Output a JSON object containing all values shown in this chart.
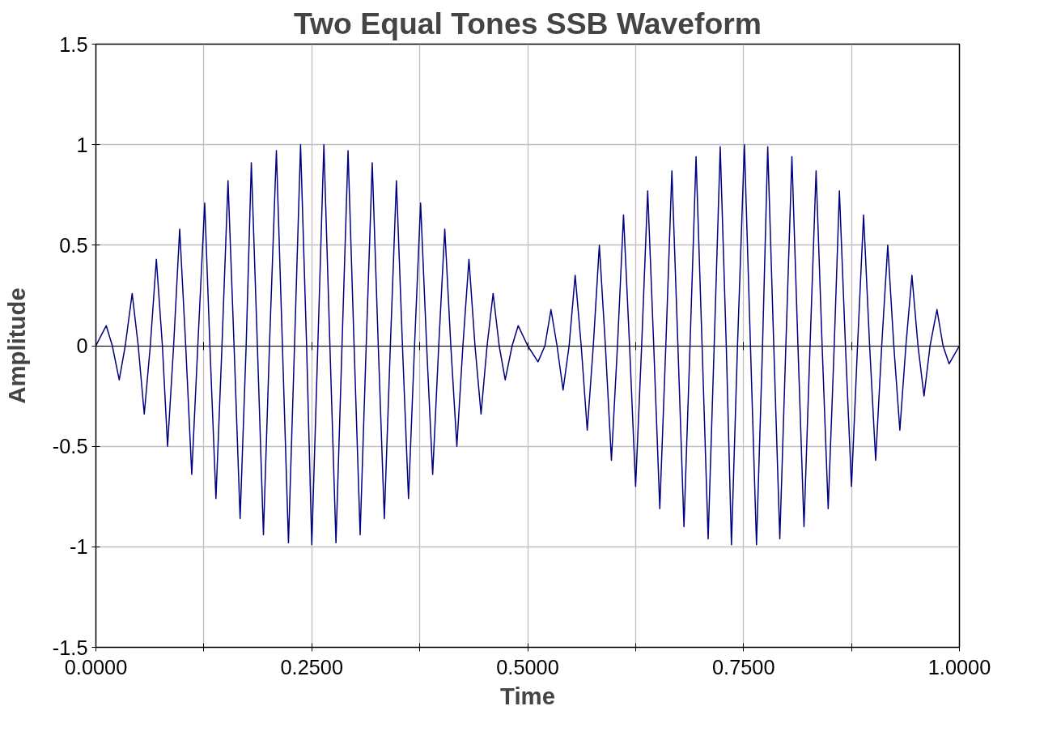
{
  "chart_data": {
    "type": "line",
    "title": "Two Equal Tones SSB Waveform",
    "xlabel": "Time",
    "ylabel": "Amplitude",
    "x": [
      0,
      0.012,
      0.019,
      0.027,
      0.034,
      0.042,
      0.049,
      0.056,
      0.063,
      0.07,
      0.077,
      0.083,
      0.09,
      0.097,
      0.104,
      0.111,
      0.118,
      0.126,
      0.132,
      0.139,
      0.146,
      0.153,
      0.16,
      0.167,
      0.174,
      0.18,
      0.187,
      0.194,
      0.201,
      0.209,
      0.216,
      0.223,
      0.23,
      0.237,
      0.244,
      0.25,
      0.257,
      0.264,
      0.271,
      0.278,
      0.285,
      0.292,
      0.299,
      0.306,
      0.313,
      0.32,
      0.327,
      0.334,
      0.341,
      0.348,
      0.355,
      0.362,
      0.369,
      0.376,
      0.383,
      0.39,
      0.397,
      0.404,
      0.411,
      0.418,
      0.425,
      0.432,
      0.439,
      0.446,
      0.453,
      0.46,
      0.467,
      0.474,
      0.482,
      0.489,
      0.5,
      0.512,
      0.52,
      0.527,
      0.534,
      0.541,
      0.548,
      0.555,
      0.562,
      0.569,
      0.576,
      0.583,
      0.59,
      0.597,
      0.604,
      0.611,
      0.618,
      0.625,
      0.632,
      0.639,
      0.646,
      0.653,
      0.66,
      0.667,
      0.674,
      0.681,
      0.688,
      0.695,
      0.702,
      0.709,
      0.716,
      0.723,
      0.73,
      0.736,
      0.743,
      0.751,
      0.758,
      0.765,
      0.772,
      0.778,
      0.785,
      0.792,
      0.799,
      0.806,
      0.813,
      0.82,
      0.827,
      0.834,
      0.841,
      0.848,
      0.855,
      0.861,
      0.868,
      0.875,
      0.882,
      0.889,
      0.896,
      0.903,
      0.91,
      0.917,
      0.924,
      0.931,
      0.938,
      0.945,
      0.952,
      0.959,
      0.966,
      0.974,
      0.981,
      0.988,
      1.0
    ],
    "series": [
      {
        "color": "#000080",
        "values": [
          0,
          0.1,
          0,
          -0.17,
          0,
          0.26,
          0,
          -0.34,
          0,
          0.43,
          0,
          -0.5,
          0,
          0.58,
          0,
          -0.64,
          0,
          0.71,
          0,
          -0.76,
          0,
          0.82,
          0,
          -0.86,
          0,
          0.91,
          0,
          -0.94,
          0,
          0.97,
          0,
          -0.98,
          0,
          1.0,
          0,
          -0.99,
          0,
          1.0,
          0,
          -0.98,
          0,
          0.97,
          0,
          -0.94,
          0,
          0.91,
          0,
          -0.86,
          0,
          0.82,
          0,
          -0.76,
          0,
          0.71,
          0,
          -0.64,
          0,
          0.58,
          0,
          -0.5,
          0,
          0.43,
          0,
          -0.34,
          0,
          0.26,
          0,
          -0.17,
          0,
          0.1,
          0,
          -0.08,
          0,
          0.18,
          0,
          -0.22,
          0,
          0.35,
          0,
          -0.42,
          0,
          0.5,
          0,
          -0.57,
          0,
          0.65,
          0,
          -0.7,
          0,
          0.77,
          0,
          -0.81,
          0,
          0.87,
          0,
          -0.9,
          0,
          0.94,
          0,
          -0.96,
          0,
          0.99,
          0,
          -0.99,
          0,
          1.0,
          0,
          -0.99,
          0,
          0.99,
          0,
          -0.96,
          0,
          0.94,
          0,
          -0.9,
          0,
          0.87,
          0,
          -0.81,
          0,
          0.77,
          0,
          -0.7,
          0,
          0.65,
          0,
          -0.57,
          0,
          0.5,
          0,
          -0.42,
          0,
          0.35,
          0,
          -0.25,
          0,
          0.18,
          0,
          -0.09,
          0
        ]
      }
    ],
    "xlim": [
      0,
      1
    ],
    "ylim": [
      -1.5,
      1.5
    ],
    "xticks": [
      {
        "value": 0,
        "label": "0.0000"
      },
      {
        "value": 0.125,
        "label": null
      },
      {
        "value": 0.25,
        "label": "0.2500"
      },
      {
        "value": 0.375,
        "label": null
      },
      {
        "value": 0.5,
        "label": "0.5000"
      },
      {
        "value": 0.625,
        "label": null
      },
      {
        "value": 0.75,
        "label": "0.7500"
      },
      {
        "value": 0.875,
        "label": null
      },
      {
        "value": 1,
        "label": "1.0000"
      }
    ],
    "yticks": [
      -1.5,
      -1,
      -0.5,
      0,
      0.5,
      1,
      1.5
    ],
    "grid": true,
    "line_style": "solid"
  }
}
